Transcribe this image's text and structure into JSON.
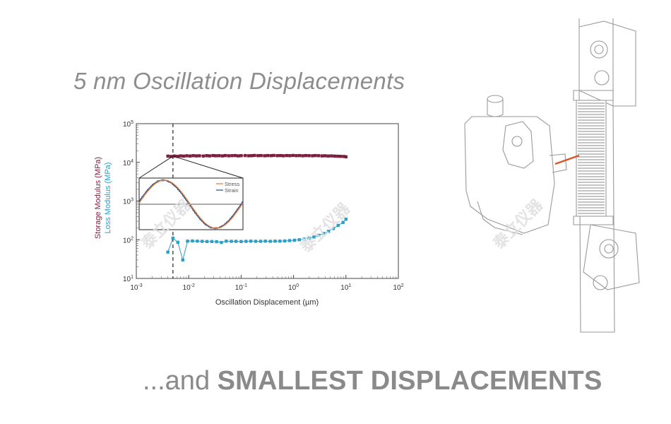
{
  "headline": "5 nm Oscillation Displacements",
  "footer": {
    "prefix": "...and ",
    "emphasis": "SMALLEST DISPLACEMENTS"
  },
  "watermark": "泰立仪器",
  "colors": {
    "storage": "#7a1f3d",
    "loss": "#2aa0c8",
    "stress": "#e07a3a",
    "strain": "#2f4f7f",
    "text_gray": "#8a8a8a"
  },
  "chart_data": {
    "type": "scatter",
    "xscale": "log",
    "yscale": "log",
    "xlabel": "Oscillation Displacement (µm)",
    "ylabel_storage": "Storage Modulus (MPa)",
    "ylabel_loss": "Loss Modulus (MPa)",
    "xlim": [
      0.001,
      100
    ],
    "ylim": [
      10,
      100000
    ],
    "x_ticks": [
      {
        "base": "10",
        "exp": "-3",
        "value": 0.001
      },
      {
        "base": "10",
        "exp": "-2",
        "value": 0.01
      },
      {
        "base": "10",
        "exp": "-1",
        "value": 0.1
      },
      {
        "base": "10",
        "exp": "0",
        "value": 1
      },
      {
        "base": "10",
        "exp": "1",
        "value": 10
      },
      {
        "base": "10",
        "exp": "2",
        "value": 100
      }
    ],
    "y_ticks": [
      {
        "base": "10",
        "exp": "1",
        "value": 10
      },
      {
        "base": "10",
        "exp": "2",
        "value": 100
      },
      {
        "base": "10",
        "exp": "3",
        "value": 1000
      },
      {
        "base": "10",
        "exp": "4",
        "value": 10000
      },
      {
        "base": "10",
        "exp": "5",
        "value": 100000
      }
    ],
    "marker_line_x": 0.005,
    "series": [
      {
        "key": "storage",
        "color": "#7a1f3d",
        "x": [
          0.004,
          0.0046,
          0.0053,
          0.0061,
          0.007,
          0.008,
          0.0092,
          0.0106,
          0.0122,
          0.014,
          0.016,
          0.019,
          0.022,
          0.025,
          0.029,
          0.033,
          0.038,
          0.044,
          0.05,
          0.058,
          0.067,
          0.077,
          0.088,
          0.1,
          0.12,
          0.14,
          0.16,
          0.18,
          0.21,
          0.24,
          0.28,
          0.32,
          0.37,
          0.42,
          0.49,
          0.56,
          0.64,
          0.74,
          0.85,
          0.98,
          1.13,
          1.3,
          1.5,
          1.72,
          1.98,
          2.3,
          2.6,
          3.0,
          3.5,
          4.0,
          4.6,
          5.3,
          6.1,
          7.0,
          8.0,
          9.2,
          10.0
        ],
        "y": [
          14500,
          14200,
          14600,
          14300,
          14700,
          14500,
          14800,
          14600,
          14900,
          14700,
          14800,
          14600,
          14900,
          14700,
          15000,
          14800,
          14900,
          14700,
          15000,
          14800,
          14900,
          15000,
          14700,
          14900,
          15000,
          14800,
          14900,
          15100,
          14900,
          15000,
          14800,
          15000,
          14900,
          15100,
          14900,
          15000,
          14800,
          15000,
          14900,
          15100,
          14900,
          15000,
          14800,
          15000,
          14900,
          14800,
          15000,
          14900,
          14700,
          14800,
          14600,
          14700,
          14500,
          14400,
          14300,
          14200,
          13900
        ]
      },
      {
        "key": "loss",
        "color": "#2aa0c8",
        "x": [
          0.004,
          0.005,
          0.0062,
          0.0077,
          0.0095,
          0.0118,
          0.0146,
          0.018,
          0.0223,
          0.0276,
          0.034,
          0.042,
          0.052,
          0.065,
          0.08,
          0.1,
          0.124,
          0.153,
          0.19,
          0.235,
          0.29,
          0.36,
          0.445,
          0.55,
          0.68,
          0.84,
          1.04,
          1.29,
          1.6,
          1.98,
          2.45,
          3.03,
          3.75,
          4.64,
          5.75,
          7.1,
          8.8,
          10.0
        ],
        "y": [
          48,
          110,
          86,
          30,
          92,
          93,
          92,
          91,
          90,
          90,
          89,
          85,
          92,
          91,
          91,
          90,
          91,
          92,
          91,
          91,
          92,
          91,
          92,
          92,
          93,
          95,
          97,
          100,
          104,
          110,
          118,
          130,
          145,
          165,
          195,
          235,
          280,
          340
        ]
      }
    ],
    "inset": {
      "legend": [
        "Stress",
        "Strain"
      ],
      "cycles": 1.0
    }
  }
}
